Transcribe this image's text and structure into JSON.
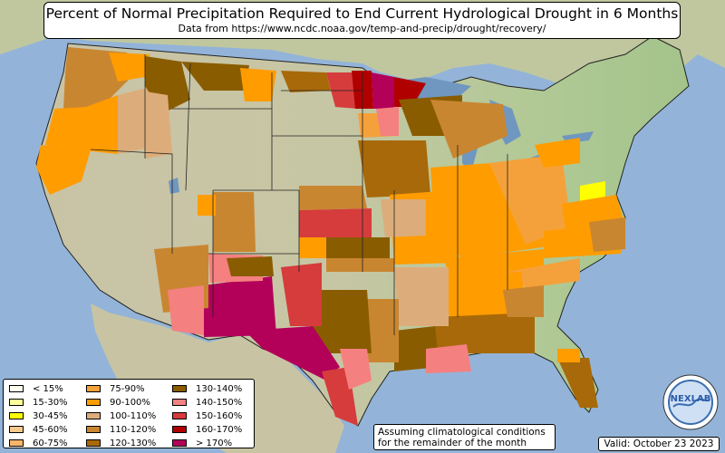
{
  "title": "Percent of Normal Precipitation Required to End Current Hydrological Drought in 6 Months",
  "subtitle": "Data from https://www.ncdc.noaa.gov/temp-and-precip/drought/recovery/",
  "legend": [
    {
      "label": "< 15%",
      "color": "#fffff2"
    },
    {
      "label": "15-30%",
      "color": "#ffff99"
    },
    {
      "label": "30-45%",
      "color": "#ffff00"
    },
    {
      "label": "45-60%",
      "color": "#f7c98d"
    },
    {
      "label": "60-75%",
      "color": "#f5b56a"
    },
    {
      "label": "75-90%",
      "color": "#f5a13b"
    },
    {
      "label": "90-100%",
      "color": "#ff9c00"
    },
    {
      "label": "100-110%",
      "color": "#dcad7a"
    },
    {
      "label": "110-120%",
      "color": "#c98630"
    },
    {
      "label": "120-130%",
      "color": "#a8690a"
    },
    {
      "label": "130-140%",
      "color": "#8a5c00"
    },
    {
      "label": "140-150%",
      "color": "#f58080"
    },
    {
      "label": "150-160%",
      "color": "#d63c3c"
    },
    {
      "label": "160-170%",
      "color": "#b00000"
    },
    {
      "label": "> 170%",
      "color": "#b30059"
    }
  ],
  "note_line1": "Assuming climatological conditions",
  "note_line2": "for the remainder of the month",
  "valid": "Valid: October 23 2023",
  "logo_text": "NEXLAB",
  "colors": {
    "ocean": "#93b4d8",
    "land_west": "#c8c3a8",
    "land_east": "#a9c68f",
    "lakes": "#6f97c0"
  }
}
